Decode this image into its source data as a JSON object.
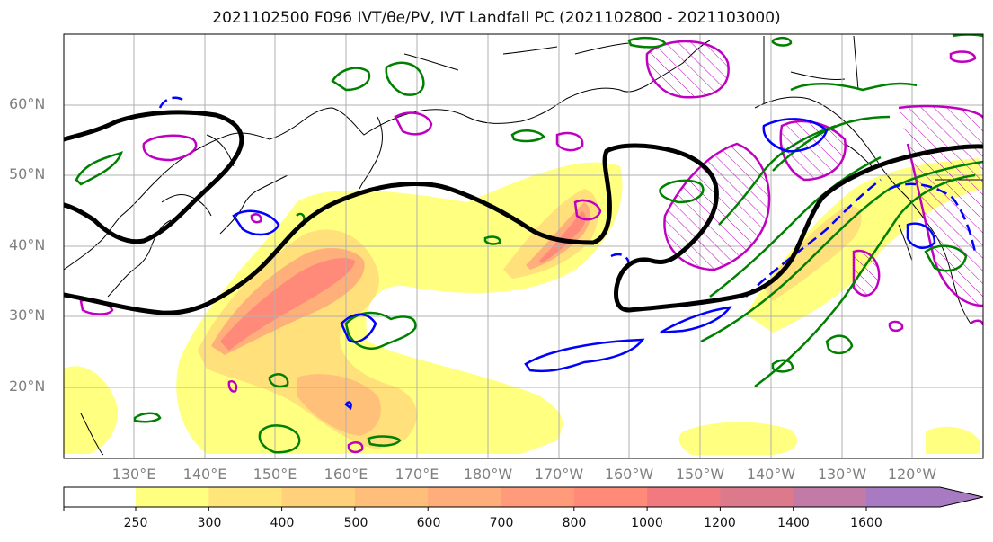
{
  "title": "2021102500 F096 IVT/θe/PV, IVT Landfall PC (2021102800 - 2021103000)",
  "map": {
    "lat_labels": [
      "60°N",
      "50°N",
      "40°N",
      "30°N",
      "20°N"
    ],
    "lon_labels": [
      "130°E",
      "140°E",
      "150°E",
      "160°E",
      "170°E",
      "180°W",
      "170°W",
      "160°W",
      "150°W",
      "140°W",
      "130°W",
      "120°W"
    ]
  },
  "colorbar": {
    "tick_labels": [
      "250",
      "300",
      "400",
      "500",
      "600",
      "700",
      "800",
      "1000",
      "1200",
      "1400",
      "1600"
    ],
    "colors": [
      "#ffff80",
      "#ffe57a",
      "#ffd17a",
      "#ffbf7a",
      "#ffad7a",
      "#ff9b7a",
      "#ff8a7a",
      "#f07a80",
      "#dc7a8c",
      "#c27aa6",
      "#a87ac2"
    ]
  },
  "colors": {
    "pv_contour": "#000000",
    "theta_e_contour": "#0000ff",
    "ivt_pc_contour": "#008000",
    "pv_hatch": "#c000c0"
  }
}
